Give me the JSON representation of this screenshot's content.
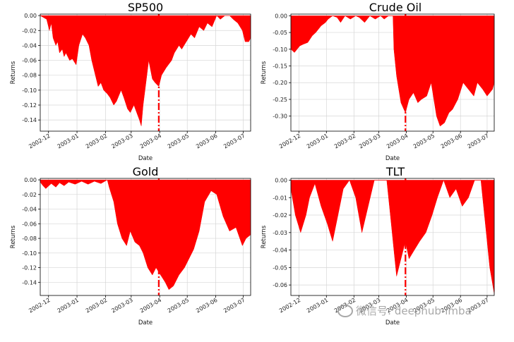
{
  "chart_data": [
    {
      "type": "area",
      "title": "SP500",
      "xlabel": "Date",
      "ylabel": "Returns",
      "x_ticks": [
        "2002-12",
        "2003-01",
        "2003-02",
        "2003-03",
        "2003-04",
        "2003-05",
        "2003-06",
        "2003-07"
      ],
      "y_ticks": [
        "0.00",
        "-0.02",
        "-0.04",
        "-0.06",
        "-0.08",
        "-0.10",
        "-0.12",
        "-0.14"
      ],
      "ylim": [
        -0.155,
        0.002
      ],
      "xlim": [
        "2002-11-22",
        "2003-07-09"
      ],
      "grid": true,
      "fill_color": "#ff0000",
      "marker_line": "2003-03-31",
      "series": [
        {
          "x": [
            "2002-11-22",
            "2002-11-29",
            "2002-12-02",
            "2002-12-04",
            "2002-12-06",
            "2002-12-09",
            "2002-12-11",
            "2002-12-13",
            "2002-12-16",
            "2002-12-18",
            "2002-12-20",
            "2002-12-24",
            "2002-12-27",
            "2002-12-31",
            "2003-01-03",
            "2003-01-07",
            "2003-01-10",
            "2003-01-14",
            "2003-01-17",
            "2003-01-22",
            "2003-01-24",
            "2003-01-27",
            "2003-01-30",
            "2003-02-03",
            "2003-02-06",
            "2003-02-10",
            "2003-02-13",
            "2003-02-18",
            "2003-02-21",
            "2003-02-25",
            "2003-02-28",
            "2003-03-04",
            "2003-03-07",
            "2003-03-10",
            "2003-03-12",
            "2003-03-14",
            "2003-03-17",
            "2003-03-20",
            "2003-03-24",
            "2003-03-27",
            "2003-03-31",
            "2003-04-03",
            "2003-04-08",
            "2003-04-14",
            "2003-04-17",
            "2003-04-22",
            "2003-04-25",
            "2003-04-30",
            "2003-05-05",
            "2003-05-09",
            "2003-05-14",
            "2003-05-19",
            "2003-05-23",
            "2003-05-28",
            "2003-06-02",
            "2003-06-06",
            "2003-06-11",
            "2003-06-16",
            "2003-06-20",
            "2003-06-25",
            "2003-06-30",
            "2003-07-03",
            "2003-07-07",
            "2003-07-09"
          ],
          "y": [
            0.0,
            -0.005,
            -0.02,
            -0.01,
            -0.03,
            -0.04,
            -0.035,
            -0.05,
            -0.045,
            -0.055,
            -0.05,
            -0.06,
            -0.058,
            -0.066,
            -0.04,
            -0.025,
            -0.03,
            -0.04,
            -0.06,
            -0.085,
            -0.095,
            -0.09,
            -0.1,
            -0.105,
            -0.11,
            -0.12,
            -0.115,
            -0.1,
            -0.11,
            -0.125,
            -0.13,
            -0.12,
            -0.13,
            -0.14,
            -0.148,
            -0.12,
            -0.09,
            -0.06,
            -0.085,
            -0.09,
            -0.095,
            -0.08,
            -0.07,
            -0.06,
            -0.05,
            -0.04,
            -0.045,
            -0.035,
            -0.025,
            -0.03,
            -0.015,
            -0.02,
            -0.01,
            -0.015,
            0.0,
            -0.005,
            0.0,
            0.0,
            -0.005,
            -0.01,
            -0.02,
            -0.035,
            -0.035,
            -0.03
          ]
        }
      ]
    },
    {
      "type": "area",
      "title": "Crude Oil",
      "xlabel": "Date",
      "ylabel": "Returns",
      "x_ticks": [
        "2002-12",
        "2003-01",
        "2003-02",
        "2003-03",
        "2003-04",
        "2003-05",
        "2003-06",
        "2003-07"
      ],
      "y_ticks": [
        "0.00",
        "-0.05",
        "-0.10",
        "-0.15",
        "-0.20",
        "-0.25",
        "-0.30"
      ],
      "ylim": [
        -0.345,
        0.005
      ],
      "xlim": [
        "2002-11-22",
        "2003-07-09"
      ],
      "grid": true,
      "fill_color": "#ff0000",
      "marker_line": "2003-03-31",
      "series": [
        {
          "x": [
            "2002-11-22",
            "2002-11-26",
            "2002-12-02",
            "2002-12-06",
            "2002-12-11",
            "2002-12-16",
            "2002-12-20",
            "2002-12-26",
            "2002-12-31",
            "2003-01-03",
            "2003-01-08",
            "2003-01-13",
            "2003-01-17",
            "2003-01-22",
            "2003-01-28",
            "2003-02-03",
            "2003-02-07",
            "2003-02-13",
            "2003-02-19",
            "2003-02-25",
            "2003-03-03",
            "2003-03-07",
            "2003-03-12",
            "2003-03-17",
            "2003-03-18",
            "2003-03-21",
            "2003-03-26",
            "2003-03-31",
            "2003-04-04",
            "2003-04-09",
            "2003-04-14",
            "2003-04-18",
            "2003-04-24",
            "2003-04-29",
            "2003-05-05",
            "2003-05-09",
            "2003-05-14",
            "2003-05-19",
            "2003-05-23",
            "2003-05-29",
            "2003-06-04",
            "2003-06-10",
            "2003-06-16",
            "2003-06-20",
            "2003-06-26",
            "2003-07-01",
            "2003-07-07",
            "2003-07-09"
          ],
          "y": [
            -0.1,
            -0.11,
            -0.09,
            -0.085,
            -0.08,
            -0.06,
            -0.05,
            -0.03,
            -0.02,
            -0.01,
            0.0,
            -0.005,
            -0.02,
            0.0,
            -0.01,
            0.0,
            -0.005,
            -0.02,
            0.0,
            -0.01,
            0.0,
            -0.01,
            0.0,
            0.0,
            -0.1,
            -0.18,
            -0.26,
            -0.29,
            -0.25,
            -0.23,
            -0.26,
            -0.25,
            -0.24,
            -0.2,
            -0.3,
            -0.33,
            -0.32,
            -0.29,
            -0.28,
            -0.25,
            -0.2,
            -0.22,
            -0.24,
            -0.2,
            -0.22,
            -0.24,
            -0.22,
            -0.2
          ]
        }
      ]
    },
    {
      "type": "area",
      "title": "Gold",
      "xlabel": "Date",
      "ylabel": "Returns",
      "x_ticks": [
        "2002-12",
        "2003-01",
        "2003-02",
        "2003-03",
        "2003-04",
        "2003-05",
        "2003-06",
        "2003-07"
      ],
      "y_ticks": [
        "0.00",
        "-0.02",
        "-0.04",
        "-0.06",
        "-0.08",
        "-0.10",
        "-0.12",
        "-0.14"
      ],
      "ylim": [
        -0.158,
        0.002
      ],
      "xlim": [
        "2002-11-22",
        "2003-07-09"
      ],
      "grid": true,
      "fill_color": "#ff0000",
      "marker_line": "2003-03-31",
      "series": [
        {
          "x": [
            "2002-11-22",
            "2002-11-25",
            "2002-11-28",
            "2002-12-04",
            "2002-12-09",
            "2002-12-13",
            "2002-12-18",
            "2002-12-23",
            "2002-12-30",
            "2003-01-06",
            "2003-01-13",
            "2003-01-20",
            "2003-01-27",
            "2003-02-03",
            "2003-02-05",
            "2003-02-10",
            "2003-02-14",
            "2003-02-19",
            "2003-02-24",
            "2003-02-28",
            "2003-03-05",
            "2003-03-10",
            "2003-03-14",
            "2003-03-19",
            "2003-03-24",
            "2003-03-28",
            "2003-04-02",
            "2003-04-07",
            "2003-04-11",
            "2003-04-16",
            "2003-04-22",
            "2003-04-28",
            "2003-05-02",
            "2003-05-08",
            "2003-05-14",
            "2003-05-20",
            "2003-05-27",
            "2003-06-02",
            "2003-06-09",
            "2003-06-16",
            "2003-06-23",
            "2003-06-30",
            "2003-07-04",
            "2003-07-09"
          ],
          "y": [
            -0.003,
            -0.008,
            -0.012,
            -0.005,
            -0.01,
            -0.004,
            -0.008,
            -0.003,
            -0.006,
            -0.002,
            -0.006,
            -0.002,
            -0.005,
            0.0,
            -0.01,
            -0.03,
            -0.06,
            -0.08,
            -0.09,
            -0.07,
            -0.085,
            -0.09,
            -0.1,
            -0.12,
            -0.13,
            -0.12,
            -0.13,
            -0.14,
            -0.15,
            -0.145,
            -0.13,
            -0.12,
            -0.11,
            -0.095,
            -0.07,
            -0.03,
            -0.015,
            -0.02,
            -0.05,
            -0.07,
            -0.065,
            -0.09,
            -0.08,
            -0.075
          ]
        }
      ]
    },
    {
      "type": "area",
      "title": "TLT",
      "xlabel": "Date",
      "ylabel": "Returns",
      "x_ticks": [
        "2002-12",
        "2003-01",
        "2003-02",
        "2003-03",
        "2003-04",
        "2003-05",
        "2003-06",
        "2003-07"
      ],
      "y_ticks": [
        "0.00",
        "-0.01",
        "-0.02",
        "-0.03",
        "-0.04",
        "-0.05",
        "-0.06"
      ],
      "ylim": [
        -0.066,
        0.001
      ],
      "xlim": [
        "2002-11-22",
        "2003-07-09"
      ],
      "grid": true,
      "fill_color": "#ff0000",
      "marker_line": "2003-03-31",
      "series": [
        {
          "x": [
            "2002-11-22",
            "2002-11-27",
            "2002-12-03",
            "2002-12-09",
            "2002-12-13",
            "2002-12-19",
            "2002-12-26",
            "2003-01-02",
            "2003-01-08",
            "2003-01-14",
            "2003-01-20",
            "2003-01-27",
            "2003-02-03",
            "2003-02-10",
            "2003-02-17",
            "2003-02-24",
            "2003-03-03",
            "2003-03-10",
            "2003-03-14",
            "2003-03-18",
            "2003-03-21",
            "2003-03-26",
            "2003-03-31",
            "2003-04-04",
            "2003-04-10",
            "2003-04-16",
            "2003-04-23",
            "2003-04-30",
            "2003-05-06",
            "2003-05-13",
            "2003-05-20",
            "2003-05-27",
            "2003-06-03",
            "2003-06-10",
            "2003-06-17",
            "2003-06-24",
            "2003-06-30",
            "2003-07-04",
            "2003-07-09"
          ],
          "y": [
            -0.005,
            -0.02,
            -0.03,
            -0.02,
            -0.01,
            -0.002,
            -0.015,
            -0.025,
            -0.035,
            -0.02,
            -0.005,
            0.0,
            -0.01,
            -0.03,
            -0.015,
            0.0,
            0.0,
            0.0,
            -0.02,
            -0.04,
            -0.055,
            -0.045,
            -0.035,
            -0.045,
            -0.04,
            -0.035,
            -0.03,
            -0.02,
            -0.01,
            0.0,
            -0.01,
            -0.005,
            -0.015,
            -0.01,
            0.0,
            0.0,
            -0.03,
            -0.05,
            -0.065
          ]
        }
      ]
    }
  ]
}
